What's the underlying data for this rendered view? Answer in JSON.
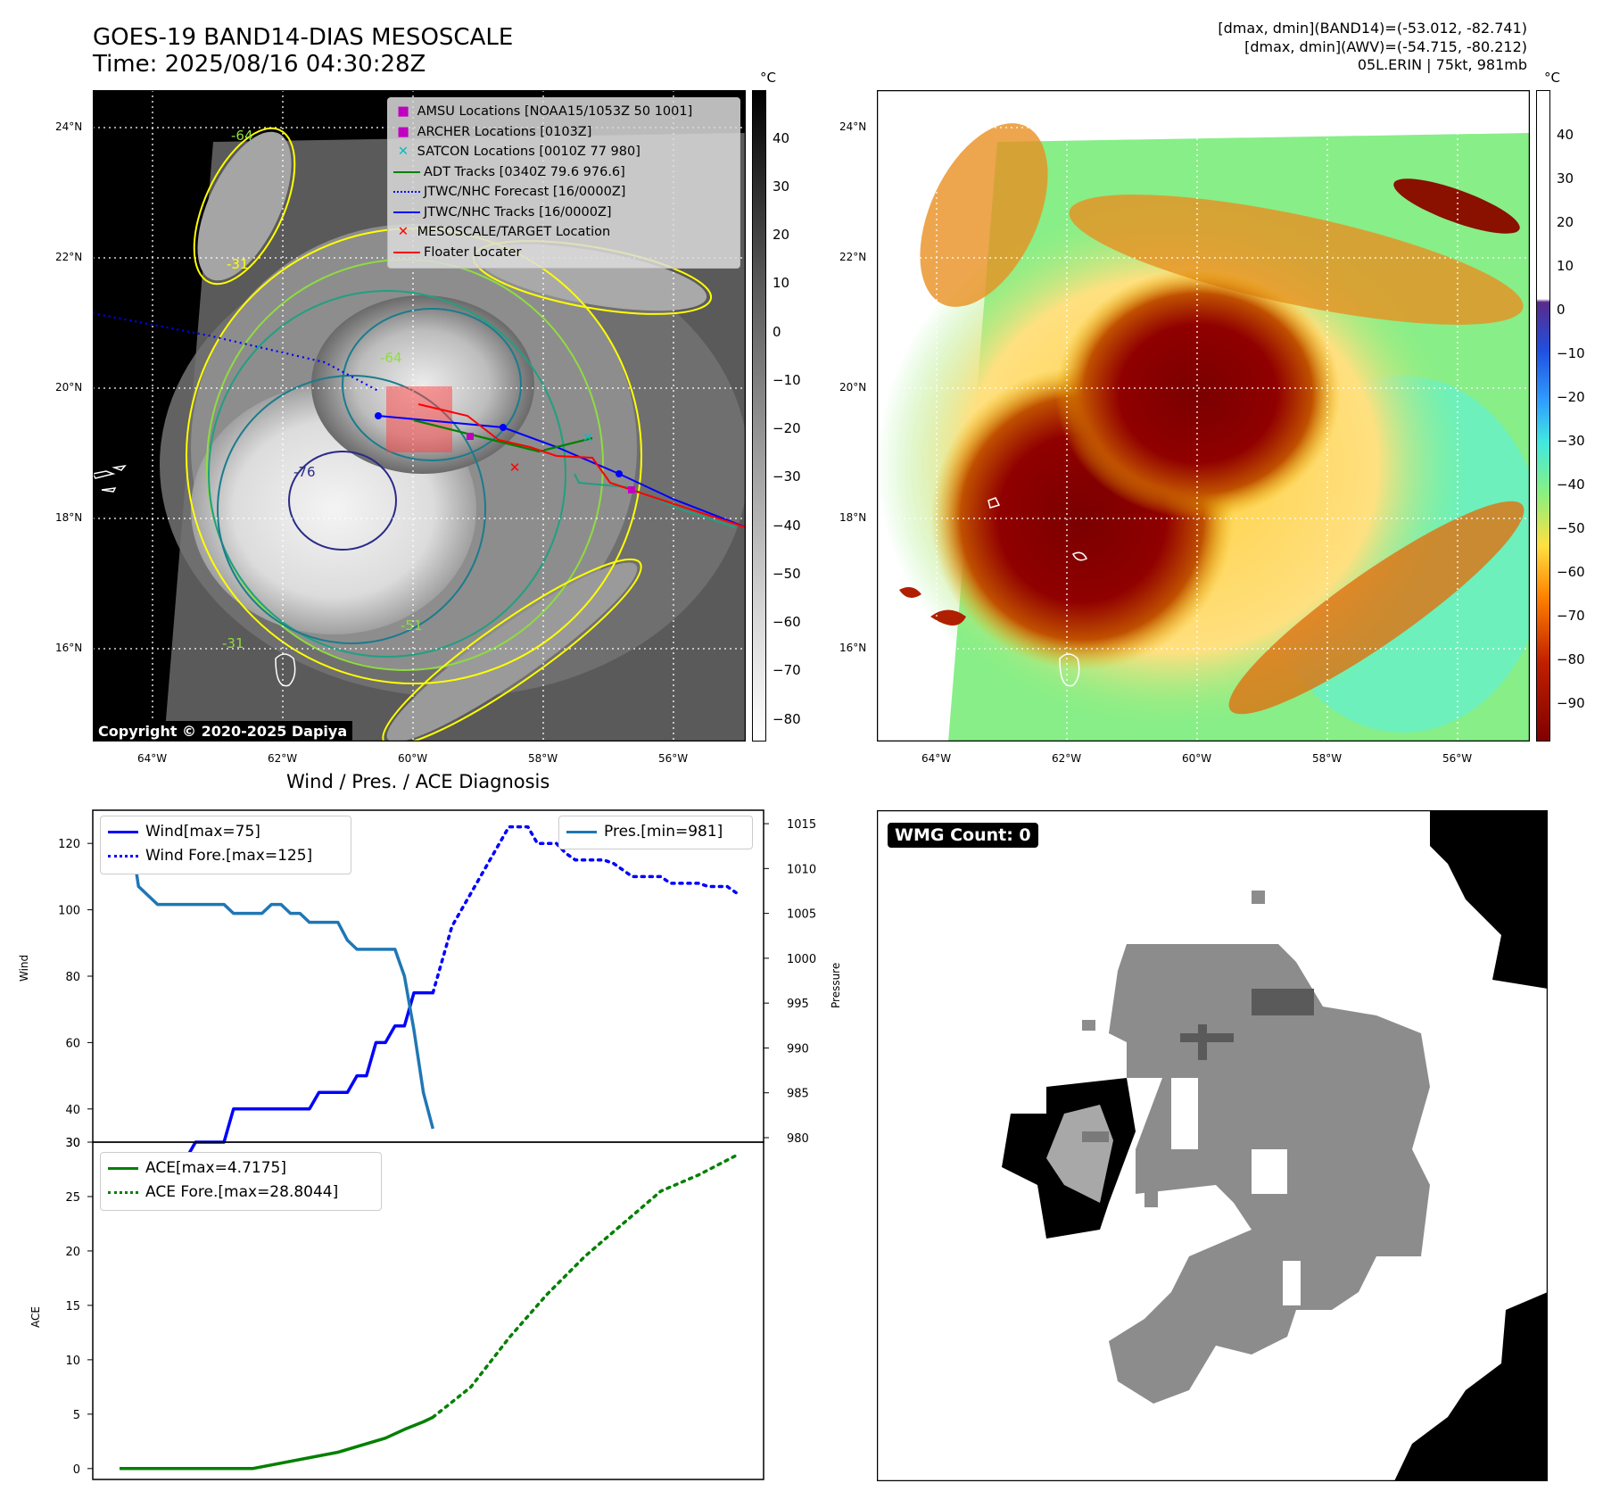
{
  "header": {
    "title_line1": "GOES-19 BAND14-DIAS MESOSCALE",
    "title_line2": "Time: 2025/08/16 04:30:28Z",
    "stat_band14": "[dmax, dmin](BAND14)=(-53.012, -82.741)",
    "stat_awv": "[dmax, dmin](AWV)=(-54.715, -80.212)",
    "storm_info": "05L.ERIN | 75kt, 981mb"
  },
  "map": {
    "lon_labels": [
      "64°W",
      "62°W",
      "60°W",
      "58°W",
      "56°W"
    ],
    "lat_labels": [
      "24°N",
      "22°N",
      "20°N",
      "18°N",
      "16°N"
    ],
    "legend": [
      {
        "label": "AMSU Locations [NOAA15/1053Z 50 1001]",
        "color": "#bf00bf",
        "marker": "square"
      },
      {
        "label": "ARCHER Locations [0103Z]",
        "color": "#bf00bf",
        "marker": "square"
      },
      {
        "label": "SATCON Locations [0010Z 77 980]",
        "color": "#00bfbf",
        "marker": "x"
      },
      {
        "label": "ADT Tracks [0340Z 79.6 976.6]",
        "color": "#008000",
        "marker": "line"
      },
      {
        "label": "JTWC/NHC Forecast [16/0000Z]",
        "color": "#0000ff",
        "marker": "dotted"
      },
      {
        "label": "JTWC/NHC Tracks [16/0000Z]",
        "color": "#0000ff",
        "marker": "line-dot"
      },
      {
        "label": "MESOSCALE/TARGET Location",
        "color": "#ff0000",
        "marker": "x"
      },
      {
        "label": "Floater Locater",
        "color": "#ff0000",
        "marker": "line"
      }
    ],
    "contour_labels": [
      "-31",
      "-64",
      "-76",
      "-51",
      "-31",
      "-64"
    ],
    "copyright": "Copyright © 2020-2025 Dapiya",
    "colorbar_unit": "°C",
    "colorbar_ticks": [
      "40",
      "30",
      "20",
      "10",
      "0",
      "−10",
      "−20",
      "−30",
      "−40",
      "−50",
      "−60",
      "−70",
      "−80"
    ]
  },
  "awv": {
    "colorbar_unit": "°C",
    "colorbar_ticks": [
      "40",
      "30",
      "20",
      "10",
      "0",
      "−10",
      "−20",
      "−30",
      "−40",
      "−50",
      "−60",
      "−70",
      "−80",
      "−90"
    ]
  },
  "diagnosis": {
    "title": "Wind / Pres. / ACE Diagnosis",
    "wind_ylabel": "Wind",
    "pres_ylabel": "Pressure",
    "ace_ylabel": "ACE",
    "legend_wind": "Wind[max=75]",
    "legend_wind_fore": "Wind Fore.[max=125]",
    "legend_pres": "Pres.[min=981]",
    "legend_ace": "ACE[max=4.7175]",
    "legend_ace_fore": "ACE Fore.[max=28.8044]"
  },
  "wmg": {
    "badge": "WMG Count: 0"
  },
  "chart_data": [
    {
      "type": "line",
      "title": "Wind / Pres. / ACE Diagnosis",
      "ylabel": "Wind",
      "ylim": [
        30,
        130
      ],
      "yticks": [
        40,
        60,
        80,
        100,
        120
      ],
      "y2label": "Pressure",
      "y2lim": [
        979.5,
        1016.5
      ],
      "y2ticks": [
        980,
        985,
        990,
        995,
        1000,
        1005,
        1010,
        1015
      ],
      "series": [
        {
          "name": "Wind[max=75]",
          "style": "solid",
          "color": "#0000ff",
          "axis": "left",
          "x": [
            0,
            1,
            2,
            3,
            4,
            5,
            6,
            7,
            8,
            9,
            10,
            11,
            12,
            13,
            14,
            15,
            16,
            17,
            18,
            19,
            20,
            21,
            22,
            23,
            24,
            25,
            26,
            27,
            28,
            29,
            30,
            31,
            32,
            33
          ],
          "y": [
            25,
            25,
            25,
            25,
            25,
            25,
            25,
            25,
            30,
            30,
            30,
            30,
            40,
            40,
            40,
            40,
            40,
            40,
            40,
            40,
            40,
            45,
            45,
            45,
            45,
            50,
            50,
            60,
            60,
            65,
            65,
            75,
            75,
            75
          ]
        },
        {
          "name": "Wind Fore.[max=125]",
          "style": "dotted",
          "color": "#0000ff",
          "axis": "left",
          "x": [
            33,
            34,
            35,
            36,
            37,
            38,
            39,
            40,
            41,
            42,
            43,
            44,
            45,
            46,
            47,
            48,
            49,
            50,
            51,
            52,
            53,
            54,
            55,
            56,
            57,
            58,
            59,
            60,
            61,
            62,
            63,
            64,
            65
          ],
          "y": [
            75,
            85,
            95,
            100,
            105,
            110,
            115,
            120,
            125,
            125,
            125,
            120,
            120,
            120,
            117,
            115,
            115,
            115,
            115,
            114,
            112,
            110,
            110,
            110,
            110,
            108,
            108,
            108,
            108,
            107,
            107,
            107,
            105
          ]
        },
        {
          "name": "Pres.[min=981]",
          "style": "solid",
          "color": "#1f77b4",
          "axis": "right",
          "x": [
            0,
            1,
            2,
            3,
            4,
            5,
            6,
            7,
            8,
            9,
            10,
            11,
            12,
            13,
            14,
            15,
            16,
            17,
            18,
            19,
            20,
            21,
            22,
            23,
            24,
            25,
            26,
            27,
            28,
            29,
            30,
            31,
            32,
            33
          ],
          "y": [
            1015,
            1015,
            1008,
            1007,
            1006,
            1006,
            1006,
            1006,
            1006,
            1006,
            1006,
            1006,
            1005,
            1005,
            1005,
            1005,
            1006,
            1006,
            1005,
            1005,
            1004,
            1004,
            1004,
            1004,
            1002,
            1001,
            1001,
            1001,
            1001,
            1001,
            998,
            992,
            985,
            981
          ]
        }
      ]
    },
    {
      "type": "line",
      "ylabel": "ACE",
      "ylim": [
        -1,
        30
      ],
      "yticks": [
        0,
        5,
        10,
        15,
        20,
        25,
        30
      ],
      "series": [
        {
          "name": "ACE[max=4.7175]",
          "style": "solid",
          "color": "#008000",
          "x": [
            0,
            14,
            23,
            28,
            30,
            32,
            33
          ],
          "y": [
            0,
            0,
            1.5,
            2.8,
            3.6,
            4.3,
            4.7175
          ]
        },
        {
          "name": "ACE Fore.[max=28.8044]",
          "style": "dotted",
          "color": "#008000",
          "x": [
            33,
            37,
            41,
            45,
            49,
            53,
            57,
            61,
            65
          ],
          "y": [
            4.7175,
            7.5,
            12,
            16,
            19.5,
            22.5,
            25.5,
            27,
            28.8044
          ]
        }
      ]
    }
  ]
}
